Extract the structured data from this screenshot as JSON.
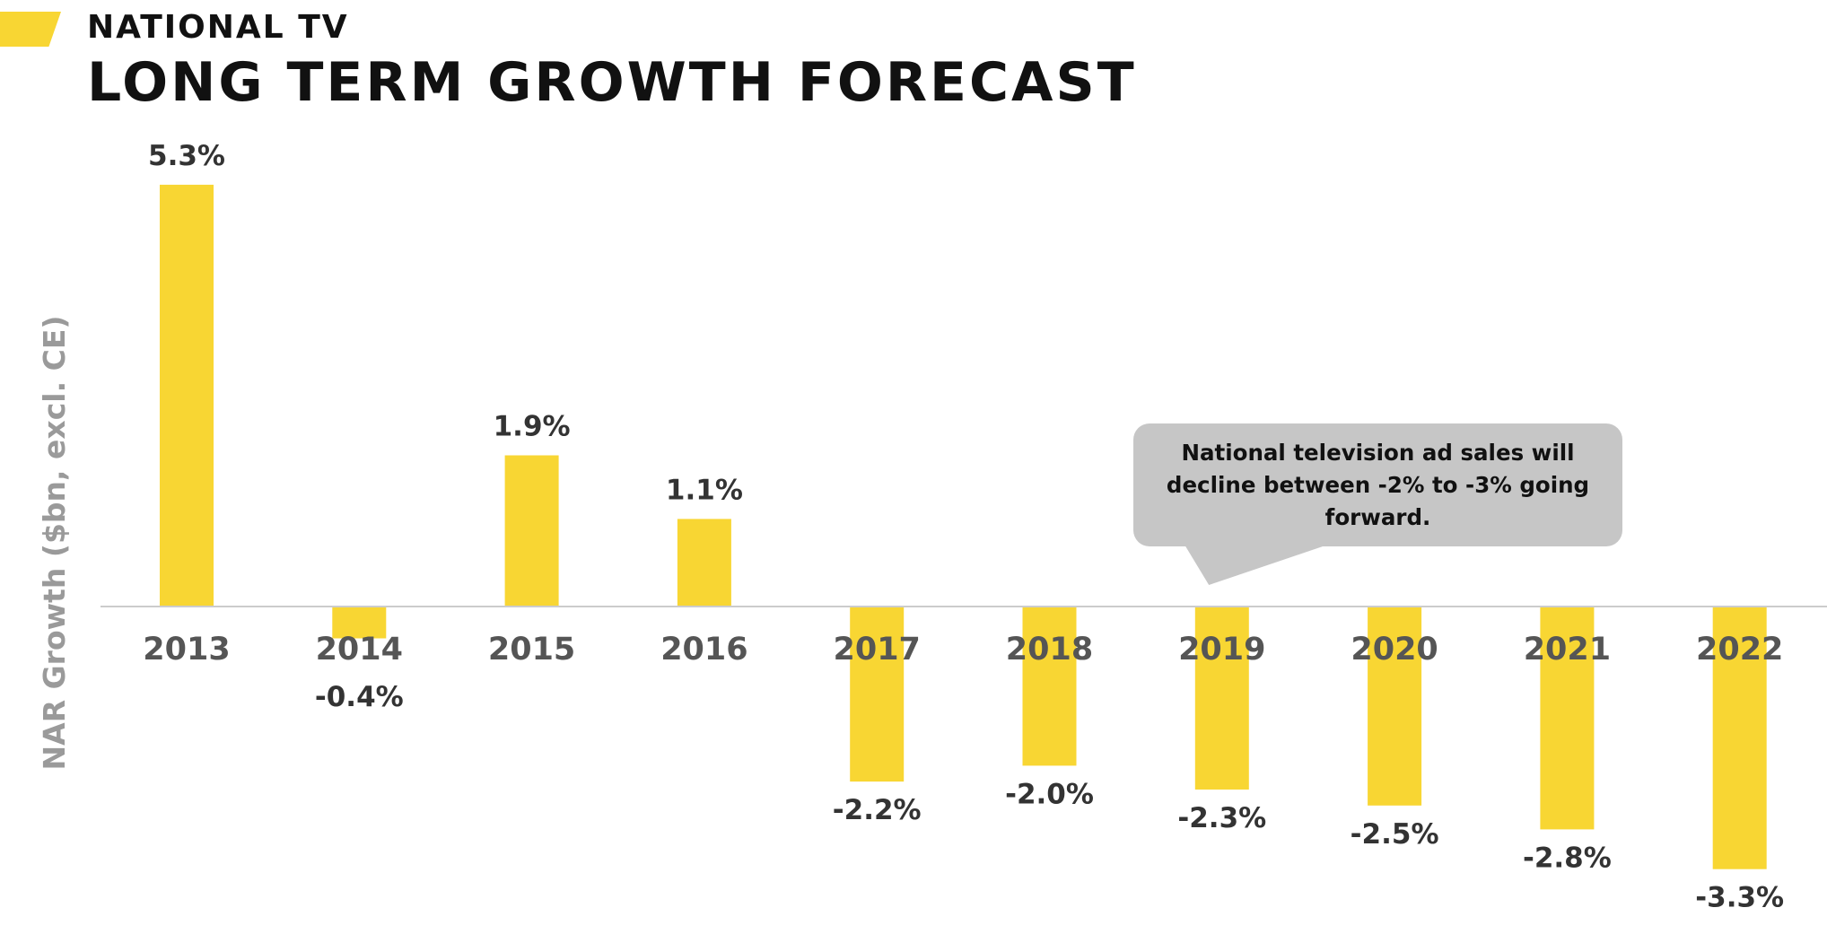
{
  "header": {
    "subtitle": "NATIONAL TV",
    "title": "LONG TERM GROWTH FORECAST"
  },
  "callout": {
    "text": "National television ad sales will decline between -2% to -3% going forward."
  },
  "colors": {
    "accent": "#F8D633",
    "bar": "#F8D633",
    "axis": "#cccccc",
    "callout_bg": "#c6c6c6"
  },
  "chart_data": {
    "type": "bar",
    "title": "LONG TERM GROWTH FORECAST",
    "xlabel": "",
    "ylabel": "NAR Growth  ($bn, excl. CE)",
    "categories": [
      "2013",
      "2014",
      "2015",
      "2016",
      "2017",
      "2018",
      "2019",
      "2020",
      "2021",
      "2022"
    ],
    "values": [
      5.3,
      -0.4,
      1.9,
      1.1,
      -2.2,
      -2.0,
      -2.3,
      -2.5,
      -2.8,
      -3.3
    ],
    "value_labels": [
      "5.3%",
      "-0.4%",
      "1.9%",
      "1.1%",
      "-2.2%",
      "-2.0%",
      "-2.3%",
      "-2.5%",
      "-2.8%",
      "-3.3%"
    ],
    "unit": "%",
    "grid": false,
    "legend": "none"
  }
}
